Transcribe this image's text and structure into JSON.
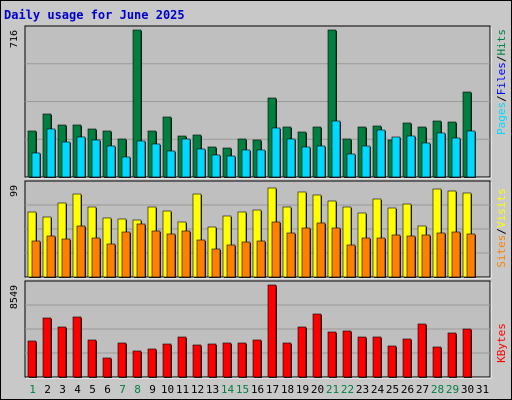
{
  "chart_data": {
    "type": "bar",
    "title": "Daily usage for June 2025",
    "days": [
      "1",
      "2",
      "3",
      "4",
      "5",
      "6",
      "7",
      "8",
      "9",
      "10",
      "11",
      "12",
      "13",
      "14",
      "15",
      "16",
      "17",
      "18",
      "19",
      "20",
      "21",
      "22",
      "23",
      "24",
      "25",
      "26",
      "27",
      "28",
      "29",
      "30",
      "31"
    ],
    "weekend_days": [
      "1",
      "7",
      "8",
      "14",
      "15",
      "21",
      "22",
      "28",
      "29"
    ],
    "colors": {
      "pages": "#00d8ff",
      "files": "#0000ff",
      "hits": "#008040",
      "visits": "#ffff00",
      "sites": "#ff8000",
      "kbytes": "#ff0000",
      "weekday_label": "#000000",
      "weekend_label": "#008040"
    },
    "panels": [
      {
        "id": "hits",
        "max_label": "716",
        "ymax": 716,
        "legend": [
          {
            "text": "Pages",
            "color": "#00d8ff"
          },
          {
            "text": "/",
            "color": "#000000"
          },
          {
            "text": "Files",
            "color": "#0000ff"
          },
          {
            "text": "/",
            "color": "#000000"
          },
          {
            "text": "Hits",
            "color": "#008040"
          }
        ],
        "series": [
          {
            "name": "Hits",
            "color": "#008040",
            "values": [
              225,
              305,
              255,
              255,
              235,
              225,
              185,
              716,
              225,
              290,
              200,
              205,
              145,
              140,
              185,
              180,
              385,
              245,
              220,
              245,
              716,
              185,
              245,
              250,
              180,
              265,
              245,
              275,
              270,
              415,
              0
            ]
          },
          {
            "name": "Pages",
            "color": "#00d8ff",
            "values": [
              115,
              235,
              170,
              195,
              180,
              150,
              95,
              175,
              160,
              125,
              185,
              135,
              105,
              100,
              130,
              130,
              240,
              185,
              145,
              150,
              275,
              110,
              150,
              230,
              195,
              200,
              165,
              215,
              190,
              225,
              0
            ]
          }
        ]
      },
      {
        "id": "visits",
        "max_label": "99",
        "ymax": 99,
        "legend": [
          {
            "text": "Sites",
            "color": "#ff8000"
          },
          {
            "text": "/",
            "color": "#000000"
          },
          {
            "text": "Visits",
            "color": "#ffff00"
          }
        ],
        "series": [
          {
            "name": "Visits",
            "color": "#ffff00",
            "values": [
              70,
              65,
              80,
              89,
              75,
              63,
              62,
              61,
              75,
              71,
              59,
              89,
              54,
              66,
              70,
              72,
              96,
              75,
              91,
              88,
              82,
              75,
              69,
              84,
              74,
              79,
              55,
              95,
              93,
              90,
              0
            ]
          },
          {
            "name": "Sites",
            "color": "#ff8000",
            "values": [
              39,
              44,
              41,
              55,
              42,
              35,
              48,
              57,
              49,
              46,
              50,
              40,
              30,
              34,
              38,
              39,
              59,
              47,
              53,
              58,
              53,
              34,
              42,
              42,
              45,
              44,
              45,
              47,
              48,
              46,
              0
            ]
          }
        ]
      },
      {
        "id": "kbytes",
        "max_label": "8549",
        "ymax": 8549,
        "legend": [
          {
            "text": "KBytes",
            "color": "#ff0000"
          }
        ],
        "series": [
          {
            "name": "KBytes",
            "color": "#ff0000",
            "values": [
              3300,
              5500,
              4600,
              5600,
              3400,
              1800,
              3200,
              2400,
              2600,
              3100,
              3700,
              3000,
              3100,
              3200,
              3200,
              3400,
              8549,
              3200,
              4600,
              5900,
              4200,
              4300,
              3700,
              3700,
              2900,
              3500,
              4900,
              2800,
              4100,
              4500,
              0
            ]
          }
        ]
      }
    ]
  }
}
